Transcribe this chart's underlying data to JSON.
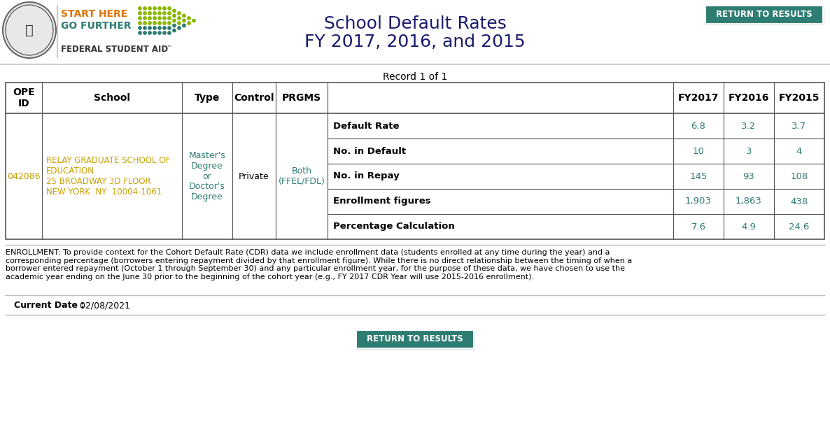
{
  "title_line1": "School Default Rates",
  "title_line2": "FY 2017, 2016, and 2015",
  "record_label": "Record 1 of 1",
  "return_btn_text": "RETURN TO RESULTS",
  "return_btn_color": "#2e7d72",
  "school_data": {
    "ope_id": "042086",
    "school": "RELAY GRADUATE SCHOOL OF\nEDUCATION\n25 BROADWAY 3D FLOOR\nNEW YORK  NY  10004-1061",
    "type": "Master's\nDegree\nor\nDoctor's\nDegree",
    "control": "Private",
    "prgms": "Both\n(FFEL/FDL)"
  },
  "metrics": [
    {
      "label": "Default Rate",
      "fy2017": "6.8",
      "fy2016": "3.2",
      "fy2015": "3.7"
    },
    {
      "label": "No. in Default",
      "fy2017": "10",
      "fy2016": "3",
      "fy2015": "4"
    },
    {
      "label": "No. in Repay",
      "fy2017": "145",
      "fy2016": "93",
      "fy2015": "108"
    },
    {
      "label": "Enrollment figures",
      "fy2017": "1,903",
      "fy2016": "1,863",
      "fy2015": "438"
    },
    {
      "label": "Percentage Calculation",
      "fy2017": "7.6",
      "fy2016": "4.9",
      "fy2015": "24.6"
    }
  ],
  "footer_text": "ENROLLMENT: To provide context for the Cohort Default Rate (CDR) data we include enrollment data (students enrolled at any time during the year) and a\ncorresponding percentage (borrowers entering repayment divided by that enrollment figure). While there is no direct relationship between the timing of when a\nborrower entered repayment (October 1 through September 30) and any particular enrollment year, for the purpose of these data, we have chosen to use the\nacademic year ending on the June 30 prior to the beginning of the cohort year (e.g., FY 2017 CDR Year will use 2015-2016 enrollment).",
  "current_date_label": "Current Date : ",
  "current_date_value": " 02/08/2021",
  "school_text_color": "#c8a000",
  "type_text_color": "#2e7d72",
  "prgms_text_color": "#2e7d72",
  "metric_value_color": "#2e7d72",
  "title_color": "#1a1a6e",
  "bg_color": "#ffffff",
  "border_color": "#555555",
  "fsa_orange": "#e07000",
  "fsa_teal": "#2e7d72",
  "fsa_dark": "#333333",
  "dot_green": "#8ab800",
  "dot_teal": "#2e7d72"
}
